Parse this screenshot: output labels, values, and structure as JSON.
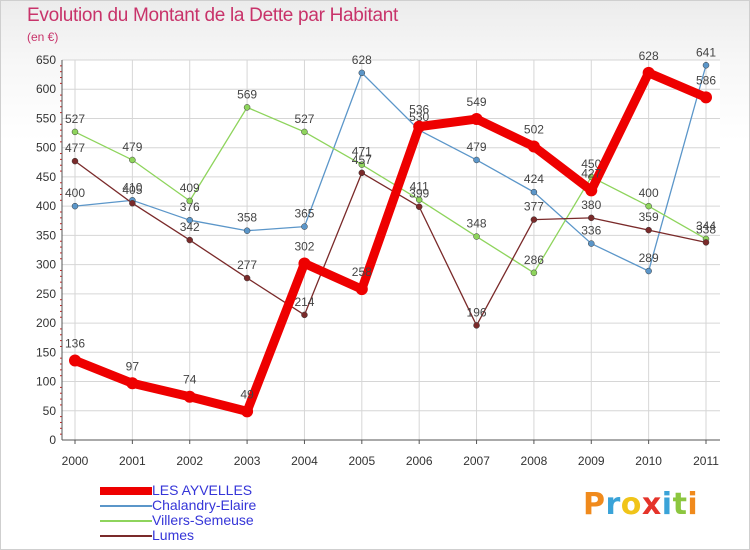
{
  "header": {
    "title": "Evolution du Montant de la Dette par Habitant",
    "subtitle": "(en €)"
  },
  "brand": {
    "letters": [
      "P",
      "r",
      "o",
      "x",
      "i",
      "t",
      "i"
    ],
    "colors": [
      "#f08a1c",
      "#3aa3d8",
      "#f0c419",
      "#e5332a",
      "#3aa3d8",
      "#8cc63f",
      "#f08a1c"
    ]
  },
  "chart_data": {
    "type": "line",
    "title": "Evolution du Montant de la Dette par Habitant",
    "subtitle": "(en €)",
    "xlabel": "",
    "ylabel": "",
    "x": [
      "2000",
      "2001",
      "2002",
      "2003",
      "2004",
      "2005",
      "2006",
      "2007",
      "2008",
      "2009",
      "2010",
      "2011"
    ],
    "ylim": [
      0,
      650
    ],
    "yticks": [
      "0",
      "50",
      "100",
      "150",
      "200",
      "250",
      "300",
      "350",
      "400",
      "450",
      "500",
      "550",
      "600",
      "650"
    ],
    "grid": true,
    "legend_position": "bottom-left",
    "series": [
      {
        "name": "LES AYVELLES",
        "color": "#ee0000",
        "values": [
          136,
          97,
          74,
          49,
          302,
          258,
          536,
          549,
          502,
          427,
          628,
          586
        ],
        "labels": [
          "136",
          "97",
          "74",
          "49",
          "302",
          "258",
          "536",
          "549",
          "502",
          "427",
          "628",
          "586"
        ]
      },
      {
        "name": "Chalandry-Elaire",
        "color": "#5b96c9",
        "values": [
          400,
          410,
          376,
          358,
          365,
          628,
          530,
          479,
          424,
          336,
          289,
          641
        ],
        "labels": [
          "400",
          "410",
          "376",
          "358",
          "365",
          "628",
          "530",
          "479",
          "424",
          "336",
          "289",
          "641"
        ]
      },
      {
        "name": "Villers-Semeuse",
        "color": "#8ed45c",
        "values": [
          527,
          479,
          409,
          569,
          527,
          471,
          411,
          348,
          286,
          450,
          400,
          344
        ],
        "labels": [
          "527",
          "479",
          "409",
          "569",
          "527",
          "471",
          "411",
          "348",
          "286",
          "450",
          "400",
          "344"
        ]
      },
      {
        "name": "Lumes",
        "color": "#7a2a2a",
        "values": [
          477,
          405,
          342,
          277,
          214,
          457,
          399,
          196,
          377,
          380,
          359,
          338
        ],
        "labels": [
          "477",
          "405",
          "342",
          "277",
          "214",
          "457",
          "399",
          "196",
          "377",
          "380",
          "359",
          "338"
        ]
      }
    ]
  }
}
